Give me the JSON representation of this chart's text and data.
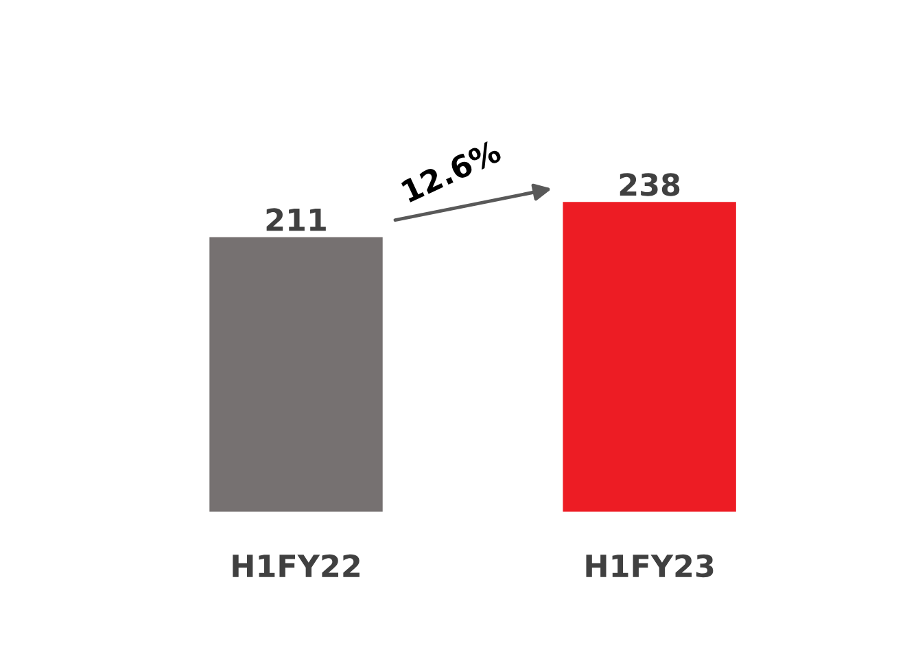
{
  "chart_data": {
    "type": "bar",
    "categories": [
      "H1FY22",
      "H1FY23"
    ],
    "values": [
      211,
      238
    ],
    "colors": [
      "#767171",
      "#ed1c24"
    ],
    "data_labels": true,
    "tick_labels": "x",
    "grid": false,
    "legend": false,
    "annotations": [
      "12.6%"
    ]
  }
}
